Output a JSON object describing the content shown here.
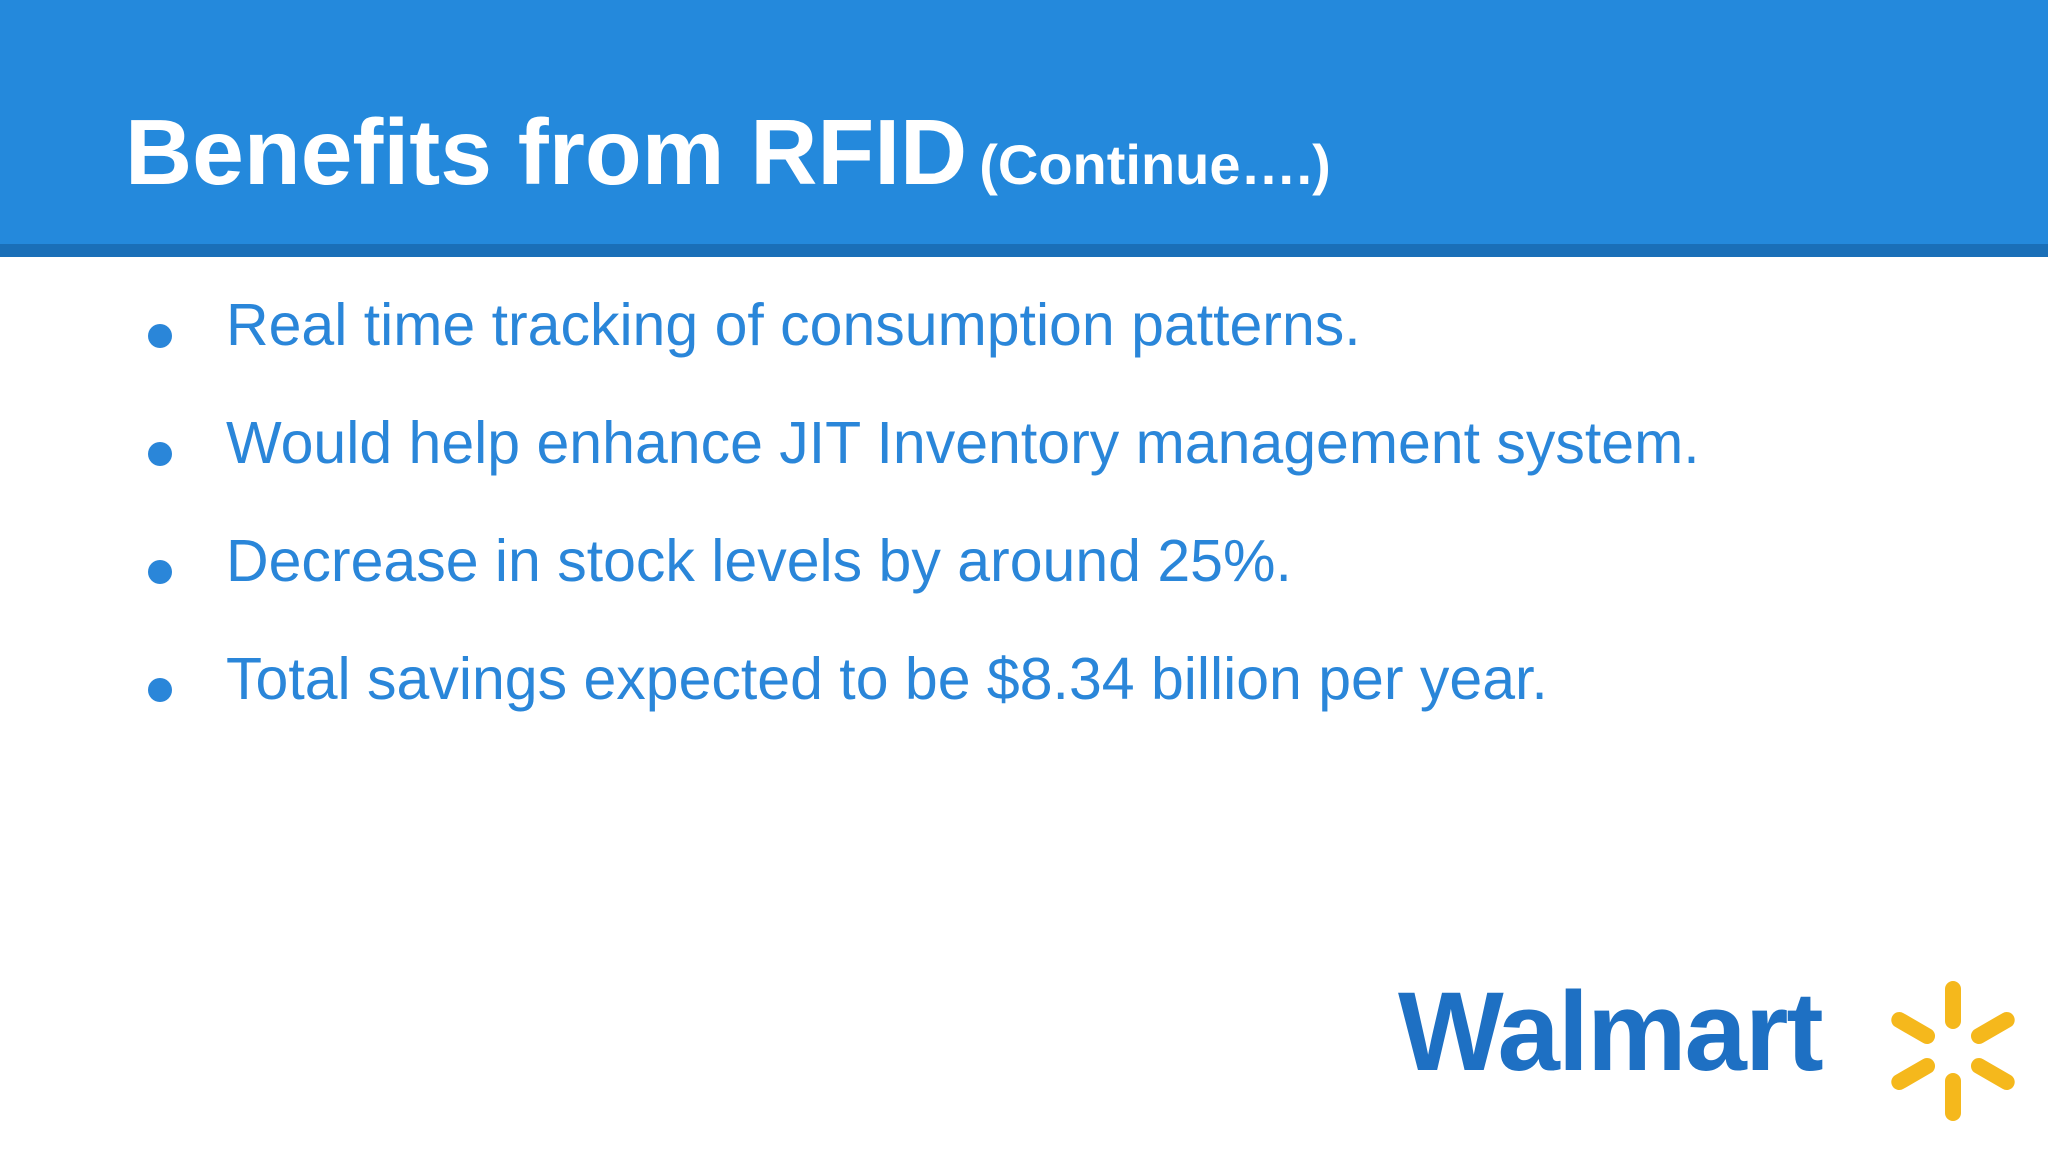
{
  "slide": {
    "title": "Benefits from RFID",
    "title_suffix": "(Continue….)",
    "bullets": [
      "Real time tracking of consumption patterns.",
      "Would help enhance JIT Inventory management system.",
      "Decrease in stock levels by around 25%.",
      "Total savings expected to be $8.34 billion per year."
    ],
    "logo": {
      "word": "Walmart",
      "icon": "walmart-spark-icon"
    }
  },
  "colors": {
    "header_bg": "#2489dc",
    "header_border": "#1a6fb8",
    "title_text": "#ffffff",
    "bullet_text": "#2a86d9",
    "logo_blue": "#1e70c3",
    "logo_yellow": "#f5b81c"
  }
}
